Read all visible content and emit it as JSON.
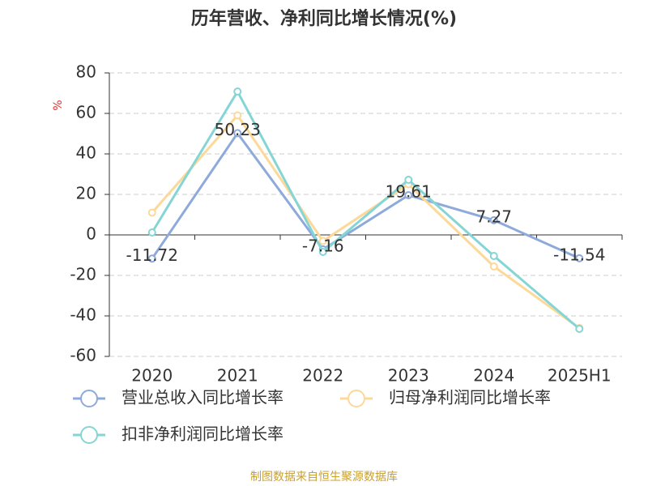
{
  "chart_data": {
    "type": "line",
    "title": "历年营收、净利同比增长情况(%)",
    "y_label": "%",
    "source": "制图数据来自恒生聚源数据库",
    "categories": [
      "2020",
      "2021",
      "2022",
      "2023",
      "2024",
      "2025H1"
    ],
    "series": [
      {
        "name": "营业总收入同比增长率",
        "color": "#8eaadb",
        "values": [
          -11.72,
          50.23,
          -7.16,
          19.61,
          7.27,
          -11.54
        ],
        "show_labels": true
      },
      {
        "name": "归母净利润同比增长率",
        "color": "#fcd899",
        "values": [
          11,
          59,
          -3,
          25,
          -15.6,
          -46
        ]
      },
      {
        "name": "扣非净利润同比增长率",
        "color": "#86d5d5",
        "values": [
          1.2,
          70.8,
          -8.4,
          27.2,
          -10.4,
          -46.4
        ]
      }
    ],
    "ylim": [
      -60,
      80
    ],
    "yticks": [
      -60,
      -40,
      -20,
      0,
      20,
      40,
      60,
      80
    ],
    "grid": true
  }
}
